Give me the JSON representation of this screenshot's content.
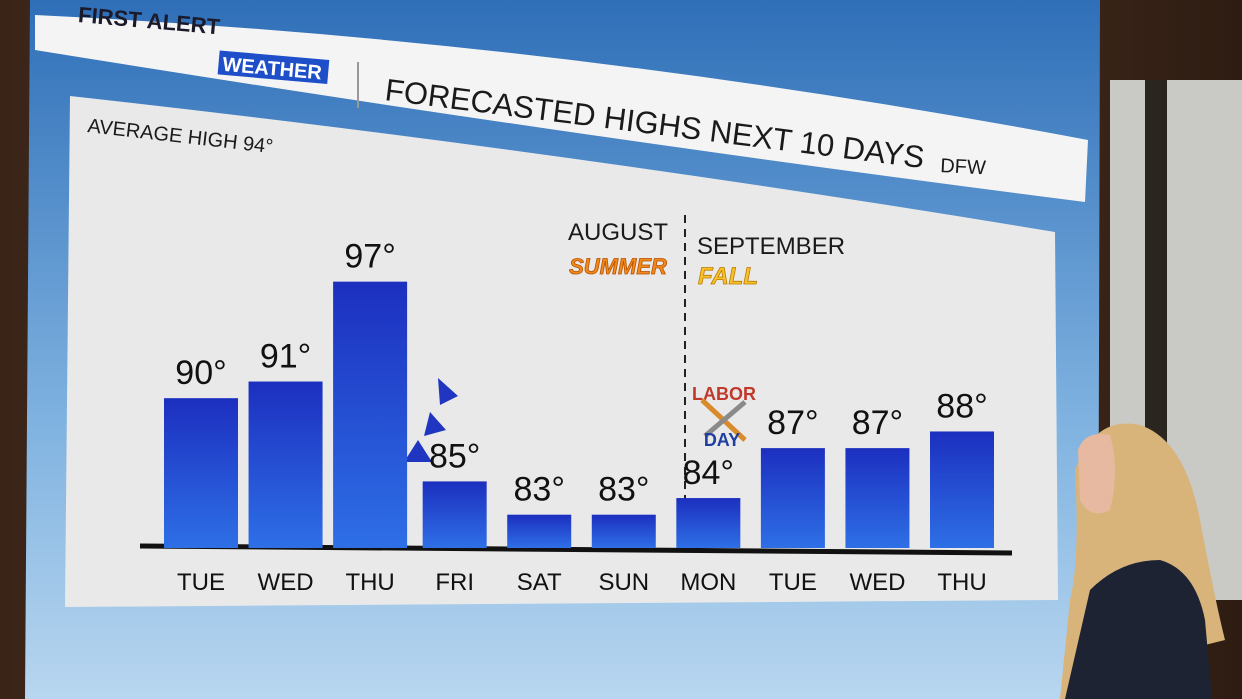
{
  "brand": {
    "line1": "FIRST ALERT",
    "line2": "WEATHER"
  },
  "chart_data": {
    "type": "bar",
    "title": "FORECASTED HIGHS NEXT 10 DAYS",
    "location": "DFW",
    "subtitle": "AVERAGE HIGH 94°",
    "categories": [
      "TUE",
      "WED",
      "THU",
      "FRI",
      "SAT",
      "SUN",
      "MON",
      "TUE",
      "WED",
      "THU"
    ],
    "values": [
      90,
      91,
      97,
      85,
      83,
      83,
      84,
      87,
      87,
      88
    ],
    "value_labels": [
      "90°",
      "91°",
      "97°",
      "85°",
      "83°",
      "83°",
      "84°",
      "87°",
      "87°",
      "88°"
    ],
    "color": "#1f3fd0",
    "ylim": [
      81,
      98
    ],
    "annotations": {
      "left_month": "AUGUST",
      "left_season": "SUMMER",
      "right_month": "SEPTEMBER",
      "right_season": "FALL",
      "holiday_line1": "LABOR",
      "holiday_line2": "DAY"
    }
  }
}
